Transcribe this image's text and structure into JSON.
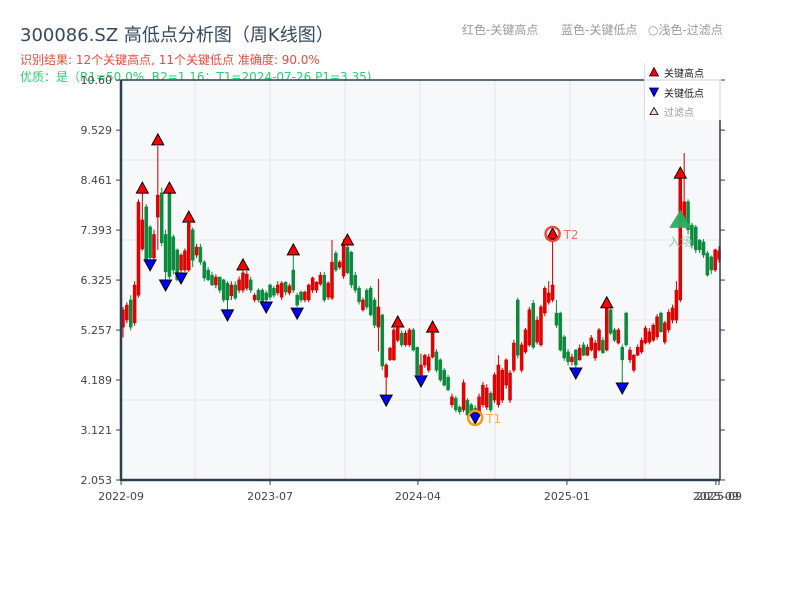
{
  "header": {
    "title": "300086.SZ 高低点分析图（周K线图）",
    "result_line": "识别结果: 12个关键高点, 11个关键低点  准确度: 90.0%",
    "quality_line": "优质：是（R1=50.0%, R2=1.16；T1=2024-07-26 P1=3.35)",
    "legend_hint": {
      "red": "红色-关键高点",
      "blue": "蓝色-关键低点",
      "light": "○浅色-过滤点"
    }
  },
  "colors": {
    "up_candle": "#e60000",
    "up_candle_stroke": "#c40000",
    "down_candle": "#0b8a3c",
    "key_high": "#ff0000",
    "key_low": "#0000ff",
    "filtered": "#ffd6d6",
    "t1": "#f39c12",
    "t2": "#e74c3c",
    "entry": "#27ae60",
    "axis": "#2c3e50",
    "grid": "#e3e6ea",
    "plot_bg": "#f7f8fa"
  },
  "chart_data": {
    "type": "candlestick",
    "title": "300086.SZ 高低点分析图（周K线图）",
    "xlabel": "",
    "ylabel": "",
    "ylim": [
      2.053,
      10.6
    ],
    "grid": true,
    "legend_position": "upper right",
    "y_ticks": [
      "2.053",
      "3.121",
      "4.189",
      "5.257",
      "6.325",
      "7.393",
      "8.461",
      "9.529",
      "10.60"
    ],
    "x_ticks": [
      {
        "label": "2022-09",
        "index": -0.5
      },
      {
        "label": "2023-07",
        "index": 38
      },
      {
        "label": "2024-04",
        "index": 76.2
      },
      {
        "label": "2025-01",
        "index": 114.7
      },
      {
        "label": "2025-09",
        "index": 153.2
      },
      {
        "label": "2025-09",
        "index": 154
      }
    ],
    "candle_format": "[open, high, low, close]",
    "candles": [
      [
        5.32,
        5.75,
        5.1,
        5.69
      ],
      [
        5.47,
        5.85,
        5.4,
        5.79
      ],
      [
        5.9,
        6.0,
        5.25,
        5.32
      ],
      [
        5.41,
        6.3,
        5.35,
        6.22
      ],
      [
        6.0,
        8.05,
        5.95,
        7.99
      ],
      [
        6.99,
        8.19,
        6.95,
        7.61
      ],
      [
        7.89,
        7.95,
        6.7,
        6.75
      ],
      [
        7.46,
        7.5,
        6.65,
        6.8
      ],
      [
        6.8,
        7.4,
        6.75,
        7.3
      ],
      [
        7.67,
        9.19,
        6.97,
        8.14
      ],
      [
        8.19,
        8.3,
        7.05,
        7.12
      ],
      [
        7.3,
        7.4,
        6.25,
        6.5
      ],
      [
        8.19,
        8.26,
        6.35,
        6.4
      ],
      [
        7.25,
        7.3,
        6.45,
        6.54
      ],
      [
        6.97,
        7.0,
        6.3,
        6.33
      ],
      [
        6.54,
        6.9,
        6.35,
        6.86
      ],
      [
        6.54,
        7.0,
        6.5,
        6.95
      ],
      [
        6.54,
        7.62,
        6.5,
        7.54
      ],
      [
        7.4,
        7.45,
        6.6,
        6.75
      ],
      [
        6.86,
        7.1,
        6.8,
        7.03
      ],
      [
        7.03,
        7.1,
        6.65,
        6.71
      ],
      [
        6.71,
        6.75,
        6.3,
        6.37
      ],
      [
        6.54,
        6.6,
        6.3,
        6.33
      ],
      [
        6.43,
        6.5,
        6.2,
        6.22
      ],
      [
        6.22,
        6.45,
        6.15,
        6.39
      ],
      [
        6.39,
        6.4,
        6.05,
        6.11
      ],
      [
        6.33,
        6.35,
        5.85,
        5.9
      ],
      [
        6.26,
        6.3,
        5.7,
        5.9
      ],
      [
        5.99,
        6.3,
        5.9,
        6.22
      ],
      [
        6.22,
        6.3,
        5.9,
        5.94
      ],
      [
        6.11,
        6.4,
        6.05,
        6.33
      ],
      [
        6.11,
        6.6,
        6.05,
        6.48
      ],
      [
        6.15,
        6.52,
        6.1,
        6.45
      ],
      [
        6.33,
        6.4,
        6.05,
        6.11
      ],
      [
        5.9,
        6.05,
        5.85,
        6.0
      ],
      [
        6.11,
        6.15,
        5.85,
        5.9
      ],
      [
        6.11,
        6.15,
        5.8,
        5.85
      ],
      [
        6.05,
        6.1,
        5.85,
        5.9
      ],
      [
        6.22,
        6.25,
        5.9,
        5.96
      ],
      [
        6.15,
        6.2,
        5.95,
        6.0
      ],
      [
        6.05,
        6.3,
        6.0,
        6.22
      ],
      [
        5.96,
        6.3,
        5.9,
        6.26
      ],
      [
        6.28,
        6.3,
        6.0,
        6.07
      ],
      [
        6.05,
        6.25,
        6.0,
        6.2
      ],
      [
        6.54,
        6.86,
        6.05,
        6.11
      ],
      [
        6.0,
        6.05,
        5.75,
        5.79
      ],
      [
        6.07,
        6.1,
        5.85,
        5.9
      ],
      [
        5.9,
        6.1,
        5.85,
        6.07
      ],
      [
        5.9,
        6.25,
        5.85,
        6.22
      ],
      [
        6.11,
        6.4,
        6.05,
        6.37
      ],
      [
        6.11,
        6.3,
        6.05,
        6.28
      ],
      [
        6.24,
        6.5,
        6.2,
        6.43
      ],
      [
        6.43,
        6.5,
        5.85,
        5.9
      ],
      [
        5.96,
        6.3,
        5.9,
        6.26
      ],
      [
        5.94,
        7.18,
        5.9,
        6.71
      ],
      [
        6.9,
        6.95,
        6.5,
        6.54
      ],
      [
        6.6,
        6.75,
        6.55,
        6.71
      ],
      [
        6.41,
        7.2,
        6.35,
        7.07
      ],
      [
        7.03,
        7.1,
        6.45,
        6.48
      ],
      [
        6.92,
        6.95,
        6.15,
        6.22
      ],
      [
        6.43,
        6.5,
        6.05,
        6.11
      ],
      [
        6.15,
        6.2,
        5.8,
        5.86
      ],
      [
        5.69,
        5.95,
        5.65,
        5.9
      ],
      [
        6.11,
        6.15,
        5.7,
        5.75
      ],
      [
        6.15,
        6.2,
        5.55,
        5.58
      ],
      [
        5.9,
        5.95,
        5.3,
        5.36
      ],
      [
        5.32,
        6.35,
        4.8,
        5.75
      ],
      [
        5.58,
        5.6,
        4.4,
        4.49
      ],
      [
        4.25,
        4.55,
        3.87,
        4.51
      ],
      [
        4.62,
        4.9,
        4.6,
        4.87
      ],
      [
        4.62,
        5.3,
        4.6,
        5.26
      ],
      [
        5.04,
        5.36,
        5.0,
        5.3
      ],
      [
        5.19,
        5.25,
        4.9,
        4.94
      ],
      [
        4.94,
        5.25,
        4.9,
        5.19
      ],
      [
        4.94,
        5.3,
        4.9,
        5.26
      ],
      [
        5.26,
        5.3,
        4.8,
        4.83
      ],
      [
        4.89,
        4.9,
        4.25,
        4.3
      ],
      [
        4.3,
        4.75,
        4.25,
        4.51
      ],
      [
        4.51,
        4.75,
        4.45,
        4.72
      ],
      [
        4.4,
        4.75,
        4.35,
        4.68
      ],
      [
        4.68,
        5.25,
        4.65,
        5.19
      ],
      [
        4.79,
        4.85,
        4.35,
        4.4
      ],
      [
        4.62,
        4.65,
        4.15,
        4.19
      ],
      [
        4.4,
        4.45,
        4.05,
        4.08
      ],
      [
        4.25,
        4.3,
        3.95,
        3.98
      ],
      [
        3.66,
        3.9,
        3.6,
        3.83
      ],
      [
        3.8,
        3.85,
        3.5,
        3.55
      ],
      [
        3.61,
        3.65,
        3.45,
        3.51
      ],
      [
        3.55,
        4.2,
        3.5,
        4.13
      ],
      [
        3.76,
        3.8,
        3.4,
        3.44
      ],
      [
        3.66,
        3.7,
        3.4,
        3.49
      ],
      [
        3.59,
        3.65,
        3.45,
        3.48
      ],
      [
        3.49,
        3.9,
        3.45,
        3.83
      ],
      [
        3.66,
        4.15,
        3.6,
        4.08
      ],
      [
        3.61,
        4.1,
        3.55,
        4.02
      ],
      [
        3.91,
        3.95,
        3.5,
        3.55
      ],
      [
        3.76,
        4.35,
        3.7,
        4.3
      ],
      [
        3.66,
        4.72,
        3.6,
        4.51
      ],
      [
        3.76,
        4.45,
        3.7,
        4.4
      ],
      [
        4.08,
        4.65,
        4.0,
        4.62
      ],
      [
        3.76,
        4.4,
        3.7,
        4.34
      ],
      [
        4.4,
        5.05,
        4.35,
        4.98
      ],
      [
        5.9,
        5.95,
        4.65,
        4.72
      ],
      [
        4.4,
        5.0,
        4.35,
        4.94
      ],
      [
        4.79,
        5.3,
        4.75,
        5.26
      ],
      [
        4.94,
        5.75,
        4.9,
        5.69
      ],
      [
        5.83,
        5.9,
        4.85,
        4.89
      ],
      [
        5.0,
        5.55,
        4.95,
        5.47
      ],
      [
        4.94,
        5.8,
        4.9,
        5.75
      ],
      [
        5.62,
        6.2,
        5.55,
        6.15
      ],
      [
        5.85,
        6.3,
        5.8,
        6.05
      ],
      [
        5.9,
        7.25,
        5.85,
        6.22
      ],
      [
        5.62,
        5.9,
        5.3,
        5.36
      ],
      [
        5.62,
        5.65,
        4.8,
        4.83
      ],
      [
        5.11,
        5.15,
        4.6,
        4.66
      ],
      [
        4.79,
        4.85,
        4.5,
        4.58
      ],
      [
        4.58,
        4.75,
        4.5,
        4.68
      ],
      [
        4.83,
        4.85,
        4.45,
        4.51
      ],
      [
        4.62,
        4.95,
        4.6,
        4.87
      ],
      [
        4.94,
        5.0,
        4.7,
        4.72
      ],
      [
        4.72,
        4.95,
        4.7,
        4.89
      ],
      [
        4.83,
        5.15,
        4.8,
        5.09
      ],
      [
        4.66,
        5.05,
        4.6,
        4.98
      ],
      [
        4.83,
        5.3,
        4.8,
        5.26
      ],
      [
        5.04,
        5.1,
        4.75,
        4.77
      ],
      [
        4.83,
        5.78,
        4.8,
        5.75
      ],
      [
        5.69,
        5.75,
        5.15,
        5.19
      ],
      [
        5.26,
        5.3,
        5.0,
        5.04
      ],
      [
        4.98,
        5.3,
        4.95,
        5.26
      ],
      [
        4.89,
        4.95,
        4.08,
        4.62
      ],
      [
        5.62,
        5.65,
        4.9,
        4.94
      ],
      [
        4.62,
        4.9,
        4.55,
        4.83
      ],
      [
        4.4,
        4.75,
        4.35,
        4.72
      ],
      [
        4.72,
        4.95,
        4.7,
        4.89
      ],
      [
        4.79,
        5.1,
        4.75,
        5.04
      ],
      [
        4.98,
        5.35,
        4.95,
        5.3
      ],
      [
        5.0,
        5.3,
        4.95,
        5.22
      ],
      [
        5.04,
        5.4,
        5.0,
        5.36
      ],
      [
        5.11,
        5.6,
        5.05,
        5.54
      ],
      [
        5.62,
        5.65,
        5.2,
        5.22
      ],
      [
        5.0,
        5.45,
        4.95,
        5.41
      ],
      [
        5.26,
        5.7,
        5.2,
        5.64
      ],
      [
        5.47,
        5.8,
        5.4,
        5.73
      ],
      [
        5.47,
        6.3,
        5.4,
        6.11
      ],
      [
        5.9,
        8.55,
        5.85,
        8.53
      ],
      [
        7.6,
        9.04,
        7.5,
        8.0
      ],
      [
        8.0,
        8.05,
        7.3,
        7.4
      ],
      [
        7.5,
        7.55,
        7.0,
        7.07
      ],
      [
        7.46,
        7.5,
        6.9,
        6.97
      ],
      [
        7.18,
        7.2,
        6.9,
        6.97
      ],
      [
        7.14,
        7.2,
        6.8,
        6.86
      ],
      [
        6.9,
        6.95,
        6.4,
        6.43
      ],
      [
        6.82,
        6.85,
        6.45,
        6.54
      ],
      [
        6.54,
        7.0,
        6.5,
        6.97
      ],
      [
        6.77,
        7.05,
        6.7,
        6.95
      ]
    ],
    "key_highs": [
      {
        "index": 5,
        "price": 8.29
      },
      {
        "index": 9,
        "price": 9.32
      },
      {
        "index": 12,
        "price": 8.29
      },
      {
        "index": 17,
        "price": 7.67
      },
      {
        "index": 31,
        "price": 6.65
      },
      {
        "index": 44,
        "price": 6.97
      },
      {
        "index": 58,
        "price": 7.18
      },
      {
        "index": 71,
        "price": 5.43
      },
      {
        "index": 80,
        "price": 5.32
      },
      {
        "index": 111,
        "price": 7.31
      },
      {
        "index": 125,
        "price": 5.84
      },
      {
        "index": 144,
        "price": 8.61
      }
    ],
    "key_lows": [
      {
        "index": 7,
        "price": 6.65
      },
      {
        "index": 11,
        "price": 6.22
      },
      {
        "index": 15,
        "price": 6.37
      },
      {
        "index": 27,
        "price": 5.58
      },
      {
        "index": 37,
        "price": 5.75
      },
      {
        "index": 45,
        "price": 5.62
      },
      {
        "index": 68,
        "price": 3.76
      },
      {
        "index": 77,
        "price": 4.17
      },
      {
        "index": 91,
        "price": 3.38
      },
      {
        "index": 117,
        "price": 4.34
      },
      {
        "index": 129,
        "price": 4.02
      }
    ],
    "annotations": [
      {
        "type": "ring",
        "label": "T1",
        "index": 91,
        "price": 3.38,
        "color": "#f39c12",
        "label_color": "#f5b041"
      },
      {
        "type": "ring",
        "label": "T2",
        "index": 111,
        "price": 7.31,
        "color": "#e74c3c",
        "label_color": "#ec7063"
      },
      {
        "type": "entry",
        "label": "入场",
        "index": 144,
        "price": 7.61,
        "color": "#27ae60",
        "label_color": "#7dcea0"
      }
    ],
    "legend": [
      {
        "label": "关键高点",
        "marker": "triangle-up",
        "color": "#ff0000"
      },
      {
        "label": "关键低点",
        "marker": "triangle-down",
        "color": "#0000ff"
      },
      {
        "label": "过滤点",
        "marker": "triangle-up-hollow",
        "color": "#ffd6d6"
      }
    ]
  }
}
